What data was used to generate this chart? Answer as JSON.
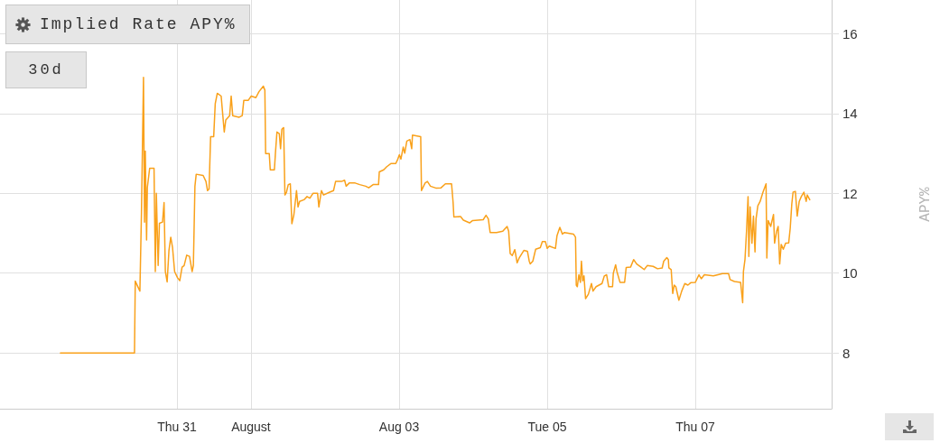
{
  "chart_data": {
    "type": "line",
    "title": "Implied Rate APY%",
    "ylabel": "APY%",
    "annotations": [
      "30d"
    ],
    "x": [
      "--07-29T10:15",
      "--07-30T10:15",
      "--07-30T10:30",
      "--07-30T12:00",
      "--07-30T12:30",
      "--07-30T13:10",
      "--07-30T13:30",
      "--07-30T13:45",
      "--07-30T14:10",
      "--07-30T14:25",
      "--07-30T15:10",
      "--07-30T16:35",
      "--07-30T17:00",
      "--07-30T17:20",
      "--07-30T17:55",
      "--07-30T18:20",
      "--07-30T19:20",
      "--07-30T19:50",
      "--07-30T20:15",
      "--07-30T20:50",
      "--07-30T21:25",
      "--07-30T22:00",
      "--07-30T22:35",
      "--07-30T23:15",
      "--07-31T00:10",
      "--07-31T00:55",
      "--07-31T01:40",
      "--07-31T02:20",
      "--07-31T03:10",
      "--07-31T04:05",
      "--07-31T04:55",
      "--07-31T05:20",
      "--07-31T05:50",
      "--07-31T06:15",
      "--07-31T08:30",
      "--07-31T09:25",
      "--07-31T09:55",
      "--07-31T10:25",
      "--07-31T10:55",
      "--07-31T11:55",
      "--07-31T12:25",
      "--07-31T13:05",
      "--07-31T14:20",
      "--07-31T14:50",
      "--07-31T15:20",
      "--07-31T15:50",
      "--07-31T17:05",
      "--07-31T17:35",
      "--07-31T18:05",
      "--07-31T20:10",
      "--07-31T21:10",
      "--07-31T21:40",
      "--07-31T23:05",
      "--08-01T00:05",
      "--08-01T01:35",
      "--08-01T02:35",
      "--08-01T04:00",
      "--08-01T04:30",
      "--08-01T04:45",
      "--08-01T05:55",
      "--08-01T06:15",
      "--08-01T07:35",
      "--08-01T07:55",
      "--08-01T08:25",
      "--08-01T09:10",
      "--08-01T09:35",
      "--08-01T10:00",
      "--08-01T10:35",
      "--08-01T11:00",
      "--08-01T11:30",
      "--08-01T12:05",
      "--08-01T12:45",
      "--08-01T13:15",
      "--08-01T13:55",
      "--08-01T14:45",
      "--08-01T15:15",
      "--08-01T15:45",
      "--08-01T17:10",
      "--08-01T18:10",
      "--08-01T19:05",
      "--08-01T20:05",
      "--08-01T21:35",
      "--08-01T22:00",
      "--08-01T22:50",
      "--08-01T23:30",
      "--08-02T01:30",
      "--08-02T02:45",
      "--08-02T03:25",
      "--08-02T05:20",
      "--08-02T06:20",
      "--08-02T06:50",
      "--08-02T07:50",
      "--08-02T09:45",
      "--08-02T11:15",
      "--08-02T13:10",
      "--08-02T14:10",
      "--08-02T15:35",
      "--08-02T17:20",
      "--08-02T17:35",
      "--08-02T19:00",
      "--08-02T20:00",
      "--08-02T21:25",
      "--08-02T22:55",
      "--08-02T23:35",
      "--08-03T00:05",
      "--08-03T00:35",
      "--08-03T01:20",
      "--08-03T01:50",
      "--08-03T02:30",
      "--08-03T03:30",
      "--08-03T04:05",
      "--08-03T04:20",
      "--08-03T07:00",
      "--08-03T07:15",
      "--08-03T08:25",
      "--08-03T09:10",
      "--08-03T10:10",
      "--08-03T12:05",
      "--08-03T13:35",
      "--08-03T15:00",
      "--08-03T17:00",
      "--08-03T17:30",
      "--08-03T17:45",
      "--08-03T19:55",
      "--08-03T20:50",
      "--08-03T22:50",
      "--08-03T23:50",
      "--08-04T03:15",
      "--08-04T04:10",
      "--08-04T04:55",
      "--08-04T05:30",
      "--08-04T07:35",
      "--08-04T09:35",
      "--08-04T11:00",
      "--08-04T11:30",
      "--08-04T12:00",
      "--08-04T12:40",
      "--08-04T13:30",
      "--08-04T14:15",
      "--08-04T14:55",
      "--08-04T16:25",
      "--08-04T17:35",
      "--08-04T18:10",
      "--08-04T18:30",
      "--08-04T19:20",
      "--08-04T20:15",
      "--08-04T21:45",
      "--08-04T22:25",
      "--08-04T23:25",
      "--08-05T00:00",
      "--08-05T00:40",
      "--08-05T02:40",
      "--08-05T03:10",
      "--08-05T04:05",
      "--08-05T04:55",
      "--08-05T05:35",
      "--08-05T08:30",
      "--08-05T09:10",
      "--08-05T09:25",
      "--08-05T09:45",
      "--08-05T10:15",
      "--08-05T10:45",
      "--08-05T11:05",
      "--08-05T11:30",
      "--08-05T11:55",
      "--08-05T12:25",
      "--08-05T13:20",
      "--08-05T14:20",
      "--08-05T14:50",
      "--08-05T15:50",
      "--08-05T17:45",
      "--08-05T18:30",
      "--08-05T19:15",
      "--08-05T19:55",
      "--08-05T21:10",
      "--08-05T21:25",
      "--08-05T22:10",
      "--08-05T22:35",
      "--08-05T23:35",
      "--08-06T01:05",
      "--08-06T01:35",
      "--08-06T03:00",
      "--08-06T04:00",
      "--08-06T05:00",
      "--08-06T06:25",
      "--08-06T07:25",
      "--08-06T08:25",
      "--08-06T10:20",
      "--08-06T11:45",
      "--08-06T13:15",
      "--08-06T13:45",
      "--08-06T14:45",
      "--08-06T15:15",
      "--08-06T15:25",
      "--08-06T16:10",
      "--08-06T16:40",
      "--08-06T17:10",
      "--08-06T17:40",
      "--08-06T18:40",
      "--08-06T19:35",
      "--08-06T20:35",
      "--08-06T21:35",
      "--08-06T22:30",
      "--08-07T00:00",
      "--08-07T01:10",
      "--08-07T01:55",
      "--08-07T02:55",
      "--08-07T05:50",
      "--08-07T07:20",
      "--08-07T08:45",
      "--08-07T10:45",
      "--08-07T11:15",
      "--08-07T12:40",
      "--08-07T14:40",
      "--08-07T15:20",
      "--08-07T15:35",
      "--08-07T16:05",
      "--08-07T16:35",
      "--08-07T17:05",
      "--08-07T17:20",
      "--08-07T17:45",
      "--08-07T18:20",
      "--08-07T18:50",
      "--08-07T19:20",
      "--08-07T19:40",
      "--08-07T20:15",
      "--08-07T21:00",
      "--08-07T21:55",
      "--08-07T22:55",
      "--08-07T23:10",
      "--08-07T23:35",
      "--08-08T00:25",
      "--08-08T01:20",
      "--08-08T01:40",
      "--08-08T02:20",
      "--08-08T02:50",
      "--08-08T03:20",
      "--08-08T03:50",
      "--08-08T04:30",
      "--08-08T05:15",
      "--08-08T06:15",
      "--08-08T06:45",
      "--08-08T07:15",
      "--08-08T07:40",
      "--08-08T08:25",
      "--08-08T09:00",
      "--08-08T09:40",
      "--08-08T10:20",
      "--08-08T11:10",
      "--08-08T11:55",
      "--08-08T12:15",
      "--08-08T13:05"
    ],
    "series": [
      {
        "color": "#f9a11b",
        "values": [
          8.0,
          8.0,
          9.8,
          9.55,
          11.48,
          14.91,
          11.28,
          13.06,
          10.83,
          12.15,
          12.63,
          12.63,
          10.04,
          12.0,
          10.19,
          11.25,
          11.28,
          11.77,
          10.04,
          9.78,
          10.57,
          10.9,
          10.64,
          10.04,
          9.89,
          9.81,
          10.15,
          10.19,
          10.45,
          10.42,
          10.04,
          10.19,
          12.18,
          12.48,
          12.45,
          12.3,
          12.07,
          12.11,
          13.42,
          13.42,
          14.25,
          14.51,
          14.44,
          13.99,
          13.54,
          13.84,
          13.95,
          14.44,
          13.95,
          13.91,
          13.95,
          14.33,
          14.33,
          14.44,
          14.4,
          14.55,
          14.69,
          14.59,
          13.0,
          13.0,
          12.59,
          12.59,
          13.0,
          13.54,
          13.5,
          13.12,
          13.61,
          13.65,
          11.96,
          12.03,
          12.22,
          12.24,
          11.24,
          11.47,
          12.07,
          11.66,
          11.8,
          11.84,
          11.92,
          11.88,
          12.0,
          12.0,
          11.66,
          12.07,
          11.96,
          12.03,
          12.07,
          12.3,
          12.3,
          12.33,
          12.18,
          12.26,
          12.26,
          12.22,
          12.18,
          12.14,
          12.22,
          12.22,
          12.54,
          12.59,
          12.67,
          12.75,
          12.75,
          12.86,
          12.97,
          12.86,
          13.16,
          13.01,
          13.31,
          13.35,
          13.12,
          13.46,
          13.42,
          12.07,
          12.26,
          12.3,
          12.18,
          12.13,
          12.14,
          12.24,
          12.24,
          11.77,
          11.41,
          11.42,
          11.33,
          11.26,
          11.32,
          11.34,
          11.45,
          11.36,
          11.02,
          11.02,
          11.05,
          11.17,
          11.05,
          10.49,
          10.44,
          10.59,
          10.26,
          10.38,
          10.57,
          10.55,
          10.3,
          10.23,
          10.3,
          10.6,
          10.64,
          10.79,
          10.79,
          10.62,
          10.68,
          10.62,
          10.94,
          11.15,
          10.98,
          11.02,
          10.98,
          10.9,
          9.7,
          9.66,
          9.96,
          9.77,
          10.3,
          9.81,
          9.93,
          9.36,
          9.47,
          9.74,
          9.55,
          9.66,
          9.74,
          9.93,
          9.96,
          9.66,
          9.66,
          10.0,
          10.21,
          10.04,
          9.77,
          9.77,
          10.14,
          10.15,
          10.34,
          10.23,
          10.15,
          10.09,
          10.19,
          10.17,
          10.11,
          10.13,
          10.3,
          10.39,
          10.34,
          10.13,
          10.09,
          9.49,
          9.7,
          9.66,
          9.32,
          9.55,
          9.74,
          9.7,
          9.76,
          9.77,
          9.96,
          9.86,
          9.96,
          9.93,
          9.96,
          9.99,
          9.99,
          9.84,
          9.79,
          9.77,
          9.26,
          10.04,
          10.34,
          11.05,
          11.92,
          10.42,
          11.66,
          10.75,
          11.43,
          10.53,
          11.36,
          11.69,
          11.8,
          12.03,
          12.24,
          10.38,
          11.32,
          11.17,
          11.47,
          10.75,
          11.05,
          11.17,
          10.23,
          10.72,
          10.6,
          10.75,
          10.76,
          11.13,
          11.73,
          12.03,
          12.05,
          11.43,
          11.8,
          11.92,
          12.03,
          11.8,
          11.96,
          11.84
        ]
      }
    ],
    "xlim": [
      "--07-28T14:40",
      "--08-08T20:10"
    ],
    "xticks": [
      {
        "value": "--07-31",
        "label": "Thu 31"
      },
      {
        "value": "--08-01",
        "label": "August"
      },
      {
        "value": "--08-03",
        "label": "Aug 03"
      },
      {
        "value": "--08-05",
        "label": "Tue 05"
      },
      {
        "value": "--08-07",
        "label": "Thu 07"
      }
    ],
    "ylim": [
      6.6,
      16.85
    ],
    "yticks": [
      8,
      10,
      12,
      14,
      16
    ],
    "grid": true
  }
}
